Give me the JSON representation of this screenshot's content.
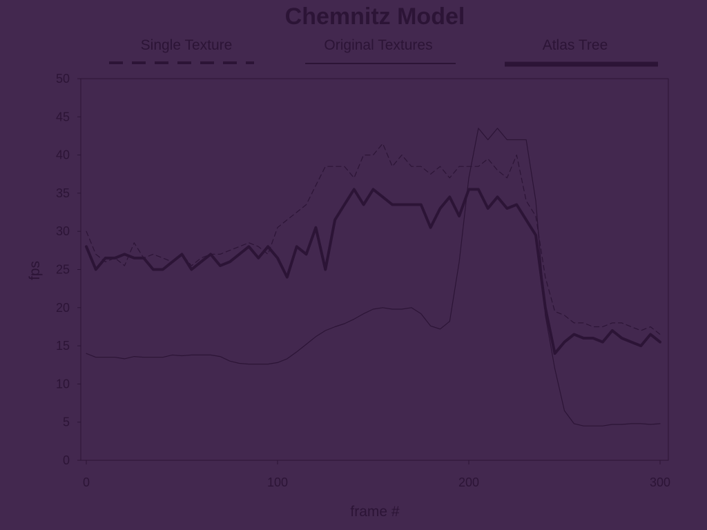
{
  "chart_data": {
    "type": "line",
    "title": "Chemnitz Model",
    "xlabel": "frame #",
    "ylabel": "fps",
    "xlim": [
      0,
      302
    ],
    "ylim": [
      0,
      50
    ],
    "xticks": [
      0,
      100,
      200,
      300
    ],
    "yticks": [
      0,
      5,
      10,
      15,
      20,
      25,
      30,
      35,
      40,
      45,
      50
    ],
    "grid": false,
    "legend_position": "top",
    "colors": {
      "background": "#43284f",
      "ink": "#2c1436"
    },
    "series": [
      {
        "name": "Single Texture",
        "style": "dashed",
        "x": [
          0,
          5,
          10,
          15,
          20,
          25,
          30,
          35,
          40,
          45,
          50,
          55,
          60,
          65,
          70,
          75,
          80,
          85,
          90,
          95,
          100,
          105,
          110,
          115,
          120,
          125,
          130,
          135,
          140,
          145,
          150,
          155,
          160,
          165,
          170,
          175,
          180,
          185,
          190,
          195,
          200,
          205,
          210,
          215,
          220,
          225,
          230,
          235,
          240,
          245,
          250,
          255,
          260,
          265,
          270,
          275,
          280,
          285,
          290,
          295,
          300
        ],
        "y": [
          30,
          27,
          26,
          26.5,
          25.5,
          28.5,
          26.5,
          27,
          26.5,
          26,
          27,
          25.5,
          26.5,
          27,
          27,
          27.5,
          28,
          28.5,
          28,
          27,
          30.5,
          31.5,
          32.5,
          33.5,
          36,
          38.5,
          38.5,
          38.5,
          37,
          40,
          40,
          41.5,
          38.5,
          40,
          38.5,
          38.5,
          37.5,
          38.5,
          37,
          38.5,
          38.5,
          38.5,
          39.5,
          38,
          37,
          40,
          34,
          32,
          24,
          19.5,
          19,
          18,
          18,
          17.5,
          17.5,
          18,
          18,
          17.5,
          17,
          17.5,
          16.5
        ]
      },
      {
        "name": "Original Textures",
        "style": "thin",
        "x": [
          0,
          5,
          10,
          15,
          20,
          25,
          30,
          35,
          40,
          45,
          50,
          55,
          60,
          65,
          70,
          75,
          80,
          85,
          90,
          95,
          100,
          105,
          110,
          115,
          120,
          125,
          130,
          135,
          140,
          145,
          150,
          155,
          160,
          165,
          170,
          175,
          180,
          185,
          190,
          195,
          200,
          205,
          210,
          215,
          220,
          225,
          230,
          235,
          240,
          245,
          250,
          255,
          260,
          265,
          270,
          275,
          280,
          285,
          290,
          295,
          300
        ],
        "y": [
          14,
          13.5,
          13.5,
          13.5,
          13.3,
          13.6,
          13.5,
          13.5,
          13.5,
          13.8,
          13.7,
          13.8,
          13.8,
          13.8,
          13.6,
          13,
          12.7,
          12.6,
          12.6,
          12.6,
          12.8,
          13.3,
          14.2,
          15.2,
          16.2,
          17,
          17.5,
          17.9,
          18.5,
          19.2,
          19.8,
          20,
          19.8,
          19.8,
          20,
          19.2,
          17.6,
          17.2,
          18.2,
          26,
          37,
          43.5,
          42,
          43.5,
          42,
          42,
          42,
          34,
          19,
          12,
          6.5,
          4.8,
          4.5,
          4.5,
          4.5,
          4.7,
          4.7,
          4.8,
          4.8,
          4.7,
          4.8
        ]
      },
      {
        "name": "Atlas Tree",
        "style": "thick",
        "x": [
          0,
          5,
          10,
          15,
          20,
          25,
          30,
          35,
          40,
          45,
          50,
          55,
          60,
          65,
          70,
          75,
          80,
          85,
          90,
          95,
          100,
          105,
          110,
          115,
          120,
          125,
          130,
          135,
          140,
          145,
          150,
          155,
          160,
          165,
          170,
          175,
          180,
          185,
          190,
          195,
          200,
          205,
          210,
          215,
          220,
          225,
          230,
          235,
          240,
          245,
          250,
          255,
          260,
          265,
          270,
          275,
          280,
          285,
          290,
          295,
          300
        ],
        "y": [
          28,
          25,
          26.5,
          26.5,
          27,
          26.5,
          26.5,
          25,
          25,
          26,
          27,
          25,
          26,
          27,
          25.5,
          26,
          27,
          28,
          26.5,
          28,
          26.5,
          24,
          28,
          27,
          30.5,
          25,
          31.5,
          33.5,
          35.5,
          33.5,
          35.5,
          34.5,
          33.5,
          33.5,
          33.5,
          33.5,
          30.5,
          33,
          34.5,
          32,
          35.5,
          35.5,
          33,
          34.5,
          33,
          33.5,
          31.5,
          29.5,
          20,
          14,
          15.5,
          16.5,
          16,
          16,
          15.5,
          17,
          16,
          15.5,
          15,
          16.5,
          15.5
        ]
      }
    ]
  }
}
